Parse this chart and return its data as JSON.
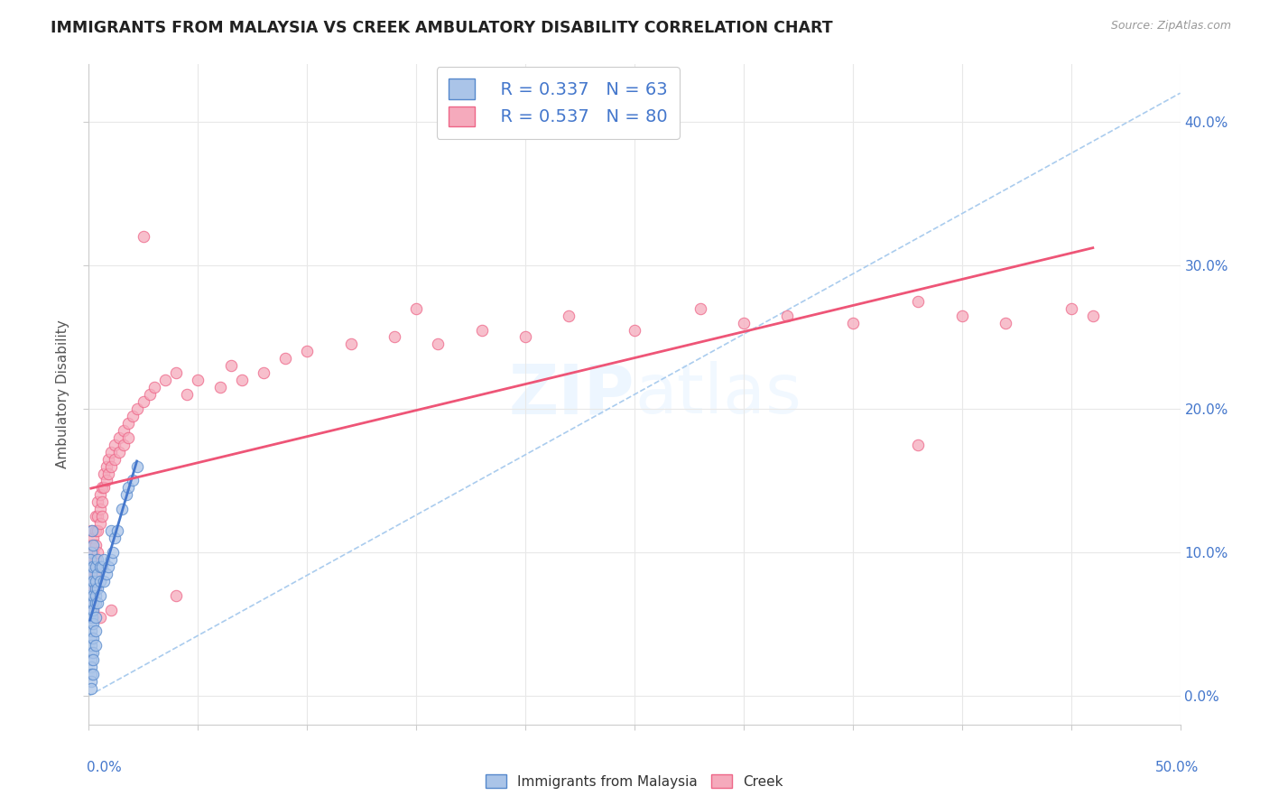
{
  "title": "IMMIGRANTS FROM MALAYSIA VS CREEK AMBULATORY DISABILITY CORRELATION CHART",
  "source": "Source: ZipAtlas.com",
  "ylabel": "Ambulatory Disability",
  "legend_r1": "R = 0.337",
  "legend_n1": "N = 63",
  "legend_r2": "R = 0.537",
  "legend_n2": "N = 80",
  "watermark": "ZIPAtlas",
  "malaysia_fill": "#aac4e8",
  "creek_fill": "#f5aabc",
  "malaysia_edge": "#5588cc",
  "creek_edge": "#ee6688",
  "malaysia_line": "#4477cc",
  "creek_line": "#ee5577",
  "dashed_line_color": "#aaccee",
  "background_color": "#ffffff",
  "grid_color": "#e8e8e8",
  "xlim": [
    0.0,
    0.5
  ],
  "ylim": [
    -0.02,
    0.44
  ],
  "malaysia_scatter": [
    [
      0.0005,
      0.055
    ],
    [
      0.001,
      0.06
    ],
    [
      0.001,
      0.04
    ],
    [
      0.0008,
      0.07
    ],
    [
      0.001,
      0.08
    ],
    [
      0.001,
      0.05
    ],
    [
      0.001,
      0.09
    ],
    [
      0.001,
      0.1
    ],
    [
      0.001,
      0.065
    ],
    [
      0.001,
      0.045
    ],
    [
      0.0015,
      0.055
    ],
    [
      0.0012,
      0.075
    ],
    [
      0.001,
      0.085
    ],
    [
      0.001,
      0.03
    ],
    [
      0.001,
      0.035
    ],
    [
      0.001,
      0.025
    ],
    [
      0.001,
      0.02
    ],
    [
      0.001,
      0.015
    ],
    [
      0.001,
      0.01
    ],
    [
      0.001,
      0.005
    ],
    [
      0.0008,
      0.095
    ],
    [
      0.0015,
      0.115
    ],
    [
      0.002,
      0.065
    ],
    [
      0.002,
      0.08
    ],
    [
      0.002,
      0.09
    ],
    [
      0.002,
      0.07
    ],
    [
      0.002,
      0.06
    ],
    [
      0.002,
      0.05
    ],
    [
      0.002,
      0.04
    ],
    [
      0.002,
      0.03
    ],
    [
      0.002,
      0.025
    ],
    [
      0.002,
      0.015
    ],
    [
      0.002,
      0.105
    ],
    [
      0.003,
      0.09
    ],
    [
      0.003,
      0.075
    ],
    [
      0.003,
      0.065
    ],
    [
      0.003,
      0.055
    ],
    [
      0.003,
      0.045
    ],
    [
      0.003,
      0.035
    ],
    [
      0.003,
      0.08
    ],
    [
      0.003,
      0.07
    ],
    [
      0.004,
      0.085
    ],
    [
      0.004,
      0.075
    ],
    [
      0.004,
      0.065
    ],
    [
      0.004,
      0.095
    ],
    [
      0.005,
      0.09
    ],
    [
      0.005,
      0.08
    ],
    [
      0.005,
      0.07
    ],
    [
      0.006,
      0.09
    ],
    [
      0.007,
      0.08
    ],
    [
      0.007,
      0.095
    ],
    [
      0.008,
      0.085
    ],
    [
      0.009,
      0.09
    ],
    [
      0.01,
      0.095
    ],
    [
      0.01,
      0.115
    ],
    [
      0.011,
      0.1
    ],
    [
      0.012,
      0.11
    ],
    [
      0.013,
      0.115
    ],
    [
      0.015,
      0.13
    ],
    [
      0.017,
      0.14
    ],
    [
      0.018,
      0.145
    ],
    [
      0.02,
      0.15
    ],
    [
      0.022,
      0.16
    ]
  ],
  "creek_scatter": [
    [
      0.001,
      0.115
    ],
    [
      0.001,
      0.105
    ],
    [
      0.001,
      0.095
    ],
    [
      0.001,
      0.085
    ],
    [
      0.001,
      0.075
    ],
    [
      0.001,
      0.065
    ],
    [
      0.002,
      0.11
    ],
    [
      0.002,
      0.1
    ],
    [
      0.002,
      0.09
    ],
    [
      0.002,
      0.08
    ],
    [
      0.002,
      0.07
    ],
    [
      0.002,
      0.06
    ],
    [
      0.003,
      0.125
    ],
    [
      0.003,
      0.115
    ],
    [
      0.003,
      0.105
    ],
    [
      0.003,
      0.095
    ],
    [
      0.003,
      0.085
    ],
    [
      0.003,
      0.075
    ],
    [
      0.004,
      0.135
    ],
    [
      0.004,
      0.125
    ],
    [
      0.004,
      0.115
    ],
    [
      0.004,
      0.1
    ],
    [
      0.005,
      0.14
    ],
    [
      0.005,
      0.13
    ],
    [
      0.005,
      0.12
    ],
    [
      0.006,
      0.145
    ],
    [
      0.006,
      0.135
    ],
    [
      0.006,
      0.125
    ],
    [
      0.007,
      0.155
    ],
    [
      0.007,
      0.145
    ],
    [
      0.008,
      0.16
    ],
    [
      0.008,
      0.15
    ],
    [
      0.009,
      0.165
    ],
    [
      0.009,
      0.155
    ],
    [
      0.01,
      0.17
    ],
    [
      0.01,
      0.16
    ],
    [
      0.012,
      0.175
    ],
    [
      0.012,
      0.165
    ],
    [
      0.014,
      0.18
    ],
    [
      0.014,
      0.17
    ],
    [
      0.016,
      0.185
    ],
    [
      0.016,
      0.175
    ],
    [
      0.018,
      0.19
    ],
    [
      0.018,
      0.18
    ],
    [
      0.02,
      0.195
    ],
    [
      0.022,
      0.2
    ],
    [
      0.025,
      0.205
    ],
    [
      0.028,
      0.21
    ],
    [
      0.03,
      0.215
    ],
    [
      0.035,
      0.22
    ],
    [
      0.04,
      0.225
    ],
    [
      0.045,
      0.21
    ],
    [
      0.05,
      0.22
    ],
    [
      0.06,
      0.215
    ],
    [
      0.065,
      0.23
    ],
    [
      0.07,
      0.22
    ],
    [
      0.08,
      0.225
    ],
    [
      0.09,
      0.235
    ],
    [
      0.1,
      0.24
    ],
    [
      0.12,
      0.245
    ],
    [
      0.14,
      0.25
    ],
    [
      0.16,
      0.245
    ],
    [
      0.18,
      0.255
    ],
    [
      0.2,
      0.25
    ],
    [
      0.22,
      0.265
    ],
    [
      0.25,
      0.255
    ],
    [
      0.28,
      0.27
    ],
    [
      0.3,
      0.26
    ],
    [
      0.32,
      0.265
    ],
    [
      0.35,
      0.26
    ],
    [
      0.38,
      0.275
    ],
    [
      0.4,
      0.265
    ],
    [
      0.42,
      0.26
    ],
    [
      0.45,
      0.27
    ],
    [
      0.46,
      0.265
    ],
    [
      0.025,
      0.32
    ],
    [
      0.15,
      0.27
    ],
    [
      0.38,
      0.175
    ],
    [
      0.005,
      0.055
    ],
    [
      0.01,
      0.06
    ],
    [
      0.04,
      0.07
    ]
  ]
}
